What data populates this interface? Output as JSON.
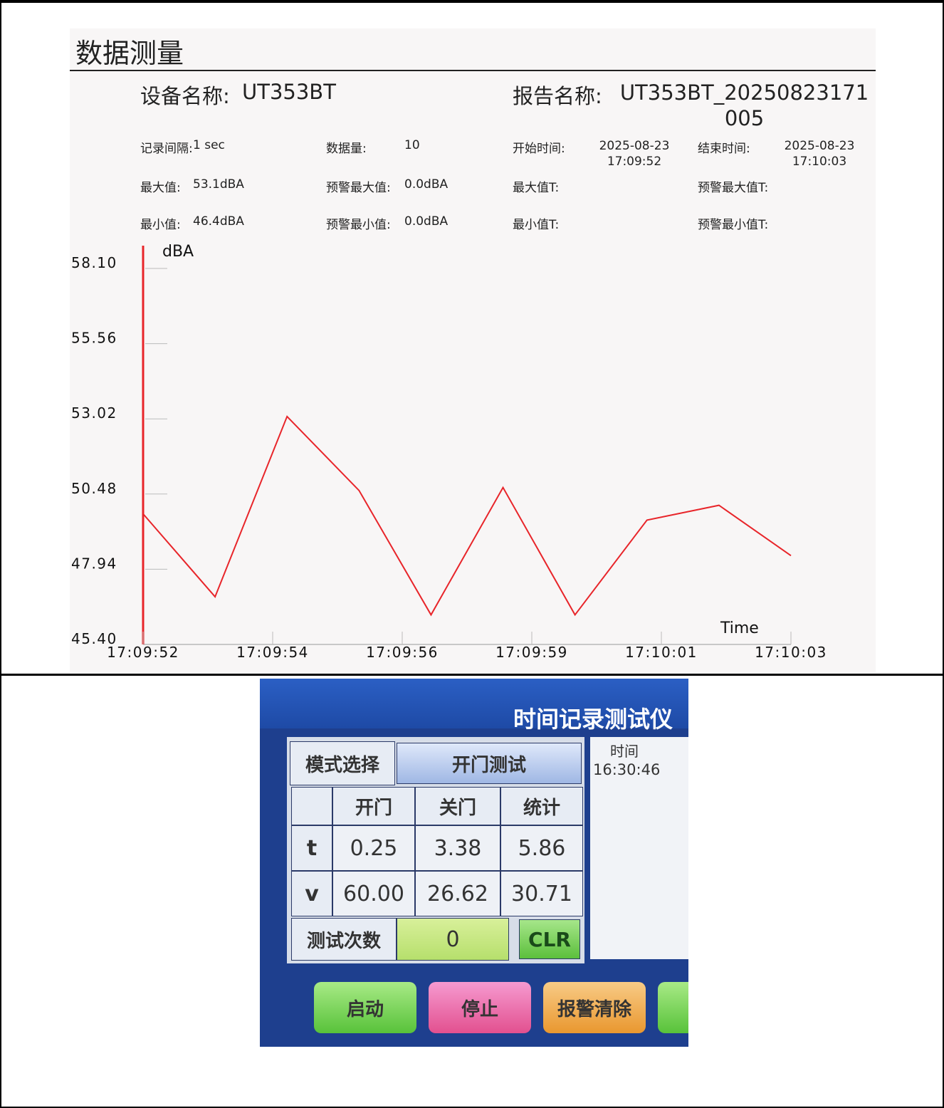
{
  "header": {
    "title": "数据测量"
  },
  "device": {
    "label": "设备名称:",
    "value": "UT353BT"
  },
  "report": {
    "label": "报告名称:",
    "value": "UT353BT_20250823171005"
  },
  "info": [
    [
      {
        "label": "记录间隔:",
        "value": "1 sec"
      },
      {
        "label": "数据量:",
        "value": "10"
      },
      {
        "label": "开始时间:",
        "value": "2025-08-23 17:09:52"
      },
      {
        "label": "结束时间:",
        "value": "2025-08-23 17:10:03"
      }
    ],
    [
      {
        "label": "最大值:",
        "value": "53.1dBA"
      },
      {
        "label": "预警最大值:",
        "value": "0.0dBA"
      },
      {
        "label": "最大值T:"
      },
      {
        "label": "预警最大值T:"
      }
    ],
    [
      {
        "label": "最小值:",
        "value": "46.4dBA"
      },
      {
        "label": "预警最小值:",
        "value": "0.0dBA"
      },
      {
        "label": "最小值T:"
      },
      {
        "label": "预警最小值T:"
      }
    ]
  ],
  "chart_data": {
    "type": "line",
    "y_label": "dBA",
    "x_label": "Time",
    "color": "#e8252a",
    "values": [
      49.81,
      47.01,
      53.1,
      50.6,
      46.4,
      50.7,
      46.4,
      49.6,
      50.1,
      48.4
    ],
    "ylim": [
      45.4,
      58.1
    ],
    "yticks": [
      {
        "value": 45.4,
        "label": "45.40"
      },
      47.94,
      50.48,
      53.02,
      55.56,
      {
        "value": 58.1,
        "label": "58.10"
      }
    ],
    "xticks": [
      "17:09:52",
      "17:09:54",
      "17:09:56",
      "17:09:59",
      "17:10:01",
      "17:10:03"
    ]
  },
  "panel": {
    "title": "时间记录测试仪",
    "mode_label": "模式选择",
    "mode_value": "开门测试",
    "side_header": "时间",
    "side_time": "16:30:46",
    "headers": [
      "开门",
      "关门",
      "统计"
    ],
    "rows": [
      {
        "label": "t",
        "values": [
          "0.25",
          "3.38",
          "5.86"
        ]
      },
      {
        "label": "v",
        "values": [
          "60.00",
          "26.62",
          "30.71"
        ]
      }
    ],
    "count_label": "测试次数",
    "count_value": "0",
    "clear": "CLR",
    "buttons": [
      "启动",
      "停止",
      "报警清除"
    ]
  }
}
